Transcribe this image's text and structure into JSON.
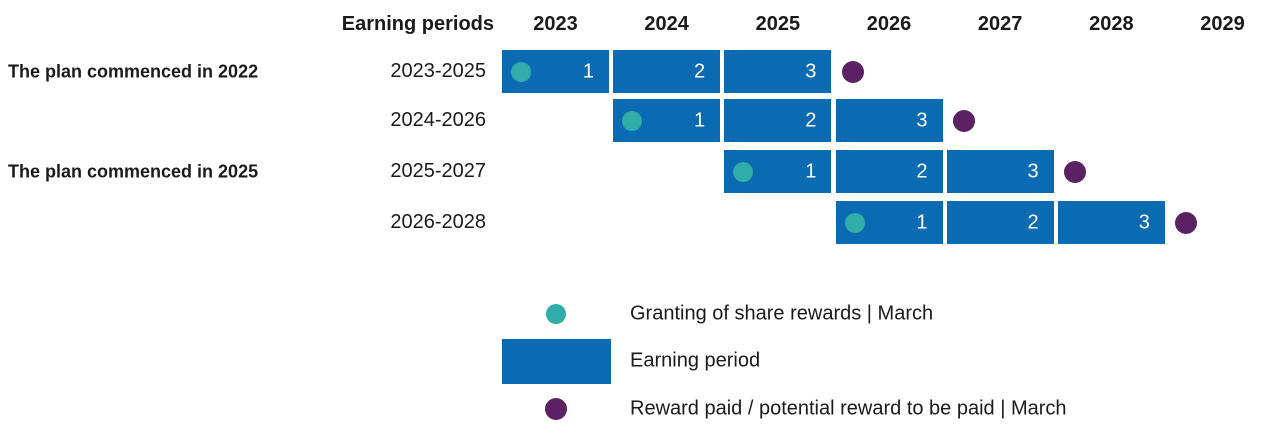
{
  "header": {
    "earning_periods_label": "Earning periods",
    "years": [
      "2023",
      "2024",
      "2025",
      "2026",
      "2027",
      "2028",
      "2029"
    ]
  },
  "rows": [
    {
      "group_label": "The plan commenced in 2022",
      "period": "2023-2025",
      "start_year": "2023",
      "end_year": "2025",
      "segments": [
        "1",
        "2",
        "3"
      ]
    },
    {
      "group_label": "",
      "period": "2024-2026",
      "start_year": "2024",
      "end_year": "2026",
      "segments": [
        "1",
        "2",
        "3"
      ]
    },
    {
      "group_label": "The plan commenced in 2025",
      "period": "2025-2027",
      "start_year": "2025",
      "end_year": "2027",
      "segments": [
        "1",
        "2",
        "3"
      ]
    },
    {
      "group_label": "",
      "period": "2026-2028",
      "start_year": "2026",
      "end_year": "2028",
      "segments": [
        "1",
        "2",
        "3"
      ]
    }
  ],
  "legend": {
    "items": [
      {
        "marker": "grant-dot",
        "label": "Granting of share rewards | March"
      },
      {
        "marker": "earning-bar",
        "label": "Earning period"
      },
      {
        "marker": "reward-dot",
        "label": "Reward paid / potential reward to be paid | March"
      }
    ]
  },
  "colors": {
    "earning_bar": "#0b6bb2",
    "grant_dot": "#30ada9",
    "reward_dot": "#5c2162",
    "text": "#1a1a1a",
    "bar_number": "#ffffff"
  },
  "chart_data": {
    "type": "bar",
    "subtype": "gantt-timeline",
    "title": "",
    "xlabel": "",
    "ylabel": "Earning periods",
    "x_ticks": [
      "2023",
      "2024",
      "2025",
      "2026",
      "2027",
      "2028",
      "2029"
    ],
    "x_range": [
      2023,
      2030
    ],
    "grid": false,
    "legend_position": "bottom",
    "rows": [
      {
        "label": "2023-2025",
        "group": "The plan commenced in 2022",
        "bar_start": 2023,
        "bar_end": 2025,
        "segment_labels": [
          "1",
          "2",
          "3"
        ],
        "grant_event": "March 2023",
        "reward_event": "March 2026"
      },
      {
        "label": "2024-2026",
        "group": "",
        "bar_start": 2024,
        "bar_end": 2026,
        "segment_labels": [
          "1",
          "2",
          "3"
        ],
        "grant_event": "March 2024",
        "reward_event": "March 2027"
      },
      {
        "label": "2025-2027",
        "group": "The plan commenced in 2025",
        "bar_start": 2025,
        "bar_end": 2027,
        "segment_labels": [
          "1",
          "2",
          "3"
        ],
        "grant_event": "March 2025",
        "reward_event": "March 2028"
      },
      {
        "label": "2026-2028",
        "group": "",
        "bar_start": 2026,
        "bar_end": 2028,
        "segment_labels": [
          "1",
          "2",
          "3"
        ],
        "grant_event": "March 2026",
        "reward_event": "March 2029"
      }
    ],
    "legend": [
      "Granting of share rewards | March",
      "Earning period",
      "Reward paid / potential reward to be paid | March"
    ]
  }
}
